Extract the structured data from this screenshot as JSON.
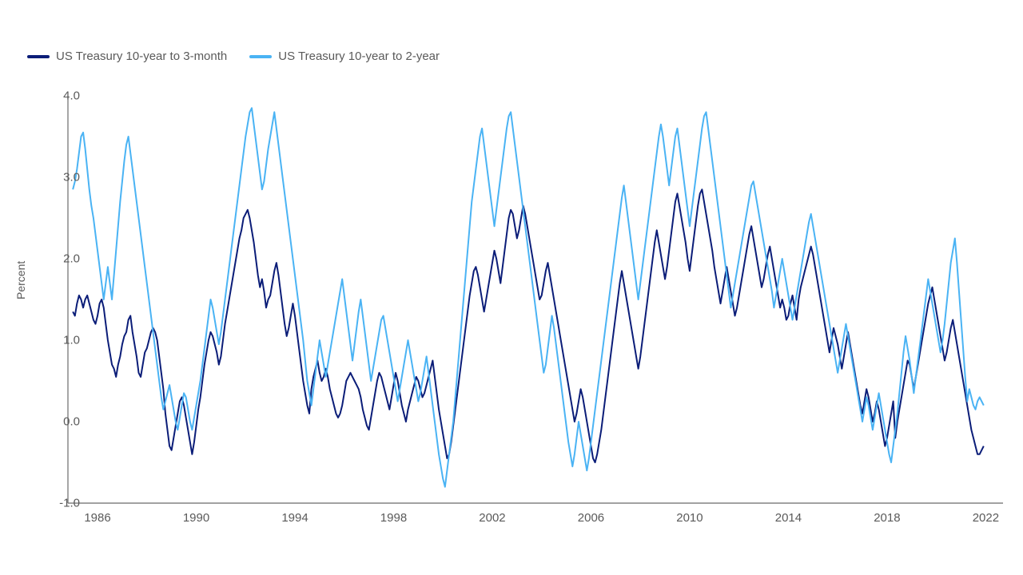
{
  "chart": {
    "type": "line",
    "background_color": "#ffffff",
    "axis_color": "#6b6b6b",
    "text_color": "#5a5a5a",
    "ylabel": "Percent",
    "label_fontsize": 14,
    "tick_fontsize": 15,
    "legend_fontsize": 15,
    "line_width": 2,
    "xlim": [
      1984.8,
      2022.7
    ],
    "ylim": [
      -1.0,
      4.0
    ],
    "yticks": [
      -1.0,
      0.0,
      1.0,
      2.0,
      3.0,
      4.0
    ],
    "ytick_labels": [
      "-1.0",
      "0.0",
      "1.0",
      "2.0",
      "3.0",
      "4.0"
    ],
    "xticks": [
      1986,
      1990,
      1994,
      1998,
      2002,
      2006,
      2010,
      2014,
      2018,
      2022
    ],
    "xtick_labels": [
      "1986",
      "1990",
      "1994",
      "1998",
      "2002",
      "2006",
      "2010",
      "2014",
      "2018",
      "2022"
    ],
    "series": [
      {
        "id": "s1",
        "label": "US Treasury 10-year to 3-month",
        "color": "#0b1d78",
        "x_start": 1985.0,
        "x_step": 0.083333,
        "y": [
          1.35,
          1.3,
          1.45,
          1.55,
          1.5,
          1.4,
          1.5,
          1.55,
          1.45,
          1.35,
          1.25,
          1.2,
          1.3,
          1.45,
          1.5,
          1.4,
          1.2,
          1.0,
          0.85,
          0.7,
          0.65,
          0.55,
          0.7,
          0.8,
          0.95,
          1.05,
          1.1,
          1.25,
          1.3,
          1.1,
          0.95,
          0.8,
          0.6,
          0.55,
          0.7,
          0.85,
          0.9,
          1.0,
          1.1,
          1.15,
          1.1,
          1.0,
          0.8,
          0.6,
          0.4,
          0.1,
          -0.1,
          -0.3,
          -0.35,
          -0.2,
          -0.05,
          0.1,
          0.25,
          0.3,
          0.2,
          0.05,
          -0.1,
          -0.25,
          -0.4,
          -0.25,
          -0.05,
          0.15,
          0.3,
          0.5,
          0.7,
          0.85,
          1.0,
          1.1,
          1.05,
          0.95,
          0.85,
          0.7,
          0.8,
          1.0,
          1.2,
          1.35,
          1.5,
          1.65,
          1.8,
          1.95,
          2.1,
          2.25,
          2.35,
          2.5,
          2.55,
          2.6,
          2.5,
          2.35,
          2.2,
          2.0,
          1.8,
          1.65,
          1.75,
          1.6,
          1.4,
          1.5,
          1.55,
          1.7,
          1.85,
          1.95,
          1.8,
          1.6,
          1.4,
          1.2,
          1.05,
          1.15,
          1.3,
          1.45,
          1.3,
          1.1,
          0.9,
          0.7,
          0.5,
          0.35,
          0.2,
          0.1,
          0.4,
          0.55,
          0.65,
          0.75,
          0.6,
          0.5,
          0.55,
          0.65,
          0.55,
          0.4,
          0.3,
          0.2,
          0.1,
          0.05,
          0.1,
          0.2,
          0.35,
          0.5,
          0.55,
          0.6,
          0.55,
          0.5,
          0.45,
          0.4,
          0.3,
          0.15,
          0.05,
          -0.05,
          -0.1,
          0.05,
          0.2,
          0.35,
          0.5,
          0.6,
          0.55,
          0.45,
          0.35,
          0.25,
          0.15,
          0.3,
          0.45,
          0.6,
          0.5,
          0.35,
          0.2,
          0.1,
          0.0,
          0.15,
          0.25,
          0.35,
          0.45,
          0.55,
          0.5,
          0.4,
          0.3,
          0.35,
          0.45,
          0.55,
          0.65,
          0.75,
          0.55,
          0.35,
          0.15,
          0.0,
          -0.15,
          -0.3,
          -0.45,
          -0.4,
          -0.25,
          -0.05,
          0.15,
          0.35,
          0.55,
          0.75,
          0.95,
          1.15,
          1.35,
          1.55,
          1.7,
          1.85,
          1.9,
          1.8,
          1.65,
          1.5,
          1.35,
          1.5,
          1.65,
          1.8,
          1.95,
          2.1,
          2.0,
          1.85,
          1.7,
          1.9,
          2.1,
          2.3,
          2.5,
          2.6,
          2.55,
          2.4,
          2.25,
          2.35,
          2.5,
          2.65,
          2.55,
          2.4,
          2.25,
          2.1,
          1.95,
          1.8,
          1.65,
          1.5,
          1.55,
          1.7,
          1.85,
          1.95,
          1.8,
          1.65,
          1.5,
          1.35,
          1.2,
          1.05,
          0.9,
          0.75,
          0.6,
          0.45,
          0.3,
          0.15,
          0.0,
          0.1,
          0.25,
          0.4,
          0.3,
          0.15,
          0.0,
          -0.15,
          -0.3,
          -0.45,
          -0.5,
          -0.4,
          -0.25,
          -0.1,
          0.1,
          0.3,
          0.5,
          0.7,
          0.9,
          1.1,
          1.3,
          1.5,
          1.7,
          1.85,
          1.7,
          1.55,
          1.4,
          1.25,
          1.1,
          0.95,
          0.8,
          0.65,
          0.8,
          1.0,
          1.2,
          1.4,
          1.6,
          1.8,
          2.0,
          2.2,
          2.35,
          2.2,
          2.05,
          1.9,
          1.75,
          1.9,
          2.1,
          2.3,
          2.5,
          2.7,
          2.8,
          2.65,
          2.5,
          2.35,
          2.2,
          2.0,
          1.85,
          2.05,
          2.25,
          2.45,
          2.65,
          2.8,
          2.85,
          2.7,
          2.55,
          2.4,
          2.25,
          2.1,
          1.9,
          1.75,
          1.6,
          1.45,
          1.6,
          1.75,
          1.9,
          1.75,
          1.6,
          1.45,
          1.3,
          1.4,
          1.55,
          1.7,
          1.85,
          2.0,
          2.15,
          2.3,
          2.4,
          2.25,
          2.1,
          1.95,
          1.8,
          1.65,
          1.75,
          1.9,
          2.05,
          2.15,
          2.0,
          1.85,
          1.7,
          1.55,
          1.4,
          1.5,
          1.4,
          1.25,
          1.3,
          1.45,
          1.55,
          1.4,
          1.25,
          1.5,
          1.65,
          1.75,
          1.85,
          1.95,
          2.05,
          2.15,
          2.05,
          1.9,
          1.75,
          1.6,
          1.45,
          1.3,
          1.15,
          1.0,
          0.85,
          1.0,
          1.15,
          1.05,
          0.95,
          0.8,
          0.65,
          0.8,
          0.95,
          1.1,
          0.95,
          0.8,
          0.65,
          0.5,
          0.35,
          0.2,
          0.1,
          0.25,
          0.4,
          0.3,
          0.15,
          0.0,
          0.1,
          0.25,
          0.15,
          0.0,
          -0.15,
          -0.3,
          -0.2,
          -0.05,
          0.1,
          0.25,
          -0.2,
          0.0,
          0.15,
          0.3,
          0.45,
          0.6,
          0.75,
          0.7,
          0.55,
          0.4,
          0.55,
          0.7,
          0.85,
          1.0,
          1.15,
          1.3,
          1.45,
          1.55,
          1.65,
          1.5,
          1.35,
          1.2,
          1.05,
          0.9,
          0.75,
          0.85,
          1.0,
          1.15,
          1.25,
          1.1,
          0.95,
          0.8,
          0.65,
          0.5,
          0.35,
          0.2,
          0.05,
          -0.1,
          -0.2,
          -0.3,
          -0.4,
          -0.4,
          -0.35,
          -0.3
        ]
      },
      {
        "id": "s2",
        "label": "US Treasury 10-year to 2-year",
        "color": "#4ab3f4",
        "x_start": 1985.0,
        "x_step": 0.083333,
        "y": [
          2.85,
          2.95,
          3.1,
          3.3,
          3.5,
          3.55,
          3.35,
          3.1,
          2.85,
          2.65,
          2.5,
          2.3,
          2.1,
          1.9,
          1.7,
          1.5,
          1.7,
          1.9,
          1.7,
          1.5,
          1.8,
          2.1,
          2.4,
          2.7,
          2.95,
          3.2,
          3.4,
          3.5,
          3.3,
          3.1,
          2.9,
          2.7,
          2.5,
          2.3,
          2.1,
          1.9,
          1.7,
          1.5,
          1.3,
          1.1,
          0.9,
          0.7,
          0.5,
          0.3,
          0.15,
          0.25,
          0.35,
          0.45,
          0.3,
          0.15,
          0.0,
          -0.1,
          0.05,
          0.2,
          0.35,
          0.3,
          0.15,
          0.0,
          -0.1,
          0.05,
          0.2,
          0.35,
          0.5,
          0.7,
          0.9,
          1.1,
          1.3,
          1.5,
          1.4,
          1.25,
          1.1,
          0.95,
          1.1,
          1.3,
          1.5,
          1.7,
          1.9,
          2.1,
          2.3,
          2.5,
          2.7,
          2.9,
          3.1,
          3.3,
          3.5,
          3.65,
          3.8,
          3.85,
          3.65,
          3.45,
          3.25,
          3.05,
          2.85,
          2.95,
          3.15,
          3.35,
          3.5,
          3.65,
          3.8,
          3.6,
          3.4,
          3.2,
          3.0,
          2.8,
          2.6,
          2.4,
          2.2,
          2.0,
          1.8,
          1.6,
          1.4,
          1.2,
          1.0,
          0.75,
          0.5,
          0.35,
          0.2,
          0.4,
          0.6,
          0.8,
          1.0,
          0.85,
          0.7,
          0.55,
          0.7,
          0.85,
          1.0,
          1.15,
          1.3,
          1.45,
          1.6,
          1.75,
          1.55,
          1.35,
          1.15,
          0.95,
          0.75,
          0.95,
          1.15,
          1.35,
          1.5,
          1.3,
          1.1,
          0.9,
          0.7,
          0.5,
          0.65,
          0.8,
          0.95,
          1.1,
          1.25,
          1.3,
          1.15,
          1.0,
          0.85,
          0.7,
          0.55,
          0.4,
          0.25,
          0.4,
          0.55,
          0.7,
          0.85,
          1.0,
          0.85,
          0.7,
          0.55,
          0.4,
          0.25,
          0.35,
          0.5,
          0.65,
          0.8,
          0.6,
          0.4,
          0.2,
          0.0,
          -0.2,
          -0.4,
          -0.55,
          -0.7,
          -0.8,
          -0.6,
          -0.4,
          -0.2,
          0.0,
          0.3,
          0.6,
          0.9,
          1.2,
          1.5,
          1.8,
          2.1,
          2.4,
          2.7,
          2.9,
          3.1,
          3.3,
          3.5,
          3.6,
          3.4,
          3.2,
          3.0,
          2.8,
          2.6,
          2.4,
          2.6,
          2.8,
          3.0,
          3.2,
          3.4,
          3.6,
          3.75,
          3.8,
          3.6,
          3.4,
          3.2,
          3.0,
          2.8,
          2.6,
          2.4,
          2.2,
          2.0,
          1.8,
          1.6,
          1.4,
          1.2,
          1.0,
          0.8,
          0.6,
          0.7,
          0.9,
          1.1,
          1.3,
          1.15,
          0.95,
          0.75,
          0.55,
          0.35,
          0.15,
          -0.05,
          -0.25,
          -0.4,
          -0.55,
          -0.4,
          -0.2,
          0.0,
          -0.15,
          -0.3,
          -0.45,
          -0.6,
          -0.45,
          -0.25,
          -0.05,
          0.15,
          0.35,
          0.55,
          0.75,
          0.95,
          1.15,
          1.35,
          1.55,
          1.75,
          1.95,
          2.15,
          2.35,
          2.55,
          2.75,
          2.9,
          2.7,
          2.5,
          2.3,
          2.1,
          1.9,
          1.7,
          1.5,
          1.7,
          1.9,
          2.1,
          2.3,
          2.5,
          2.7,
          2.9,
          3.1,
          3.3,
          3.5,
          3.65,
          3.5,
          3.3,
          3.1,
          2.9,
          3.1,
          3.3,
          3.5,
          3.6,
          3.4,
          3.2,
          3.0,
          2.8,
          2.6,
          2.4,
          2.6,
          2.8,
          3.0,
          3.2,
          3.4,
          3.6,
          3.75,
          3.8,
          3.6,
          3.4,
          3.2,
          3.0,
          2.8,
          2.6,
          2.4,
          2.2,
          2.0,
          1.8,
          1.6,
          1.4,
          1.55,
          1.7,
          1.85,
          2.0,
          2.15,
          2.3,
          2.45,
          2.6,
          2.75,
          2.9,
          2.95,
          2.8,
          2.65,
          2.5,
          2.35,
          2.2,
          2.05,
          1.9,
          1.75,
          1.6,
          1.4,
          1.55,
          1.7,
          1.85,
          2.0,
          1.85,
          1.7,
          1.55,
          1.4,
          1.25,
          1.4,
          1.55,
          1.7,
          1.85,
          2.0,
          2.15,
          2.3,
          2.45,
          2.55,
          2.4,
          2.25,
          2.1,
          1.95,
          1.8,
          1.65,
          1.5,
          1.35,
          1.2,
          1.05,
          0.9,
          0.75,
          0.6,
          0.75,
          0.9,
          1.05,
          1.2,
          1.05,
          0.9,
          0.75,
          0.6,
          0.45,
          0.3,
          0.15,
          0.0,
          0.15,
          0.3,
          0.2,
          0.05,
          -0.1,
          0.05,
          0.2,
          0.35,
          0.2,
          0.05,
          -0.1,
          -0.25,
          -0.4,
          -0.5,
          -0.3,
          -0.1,
          0.1,
          0.35,
          0.6,
          0.85,
          1.05,
          0.9,
          0.75,
          0.55,
          0.35,
          0.55,
          0.75,
          0.95,
          1.15,
          1.35,
          1.55,
          1.75,
          1.6,
          1.45,
          1.3,
          1.15,
          1.0,
          0.85,
          1.0,
          1.2,
          1.45,
          1.7,
          1.95,
          2.1,
          2.25,
          1.95,
          1.6,
          1.25,
          0.9,
          0.55,
          0.25,
          0.4,
          0.3,
          0.2,
          0.15,
          0.25,
          0.3,
          0.25,
          0.2
        ]
      }
    ]
  }
}
